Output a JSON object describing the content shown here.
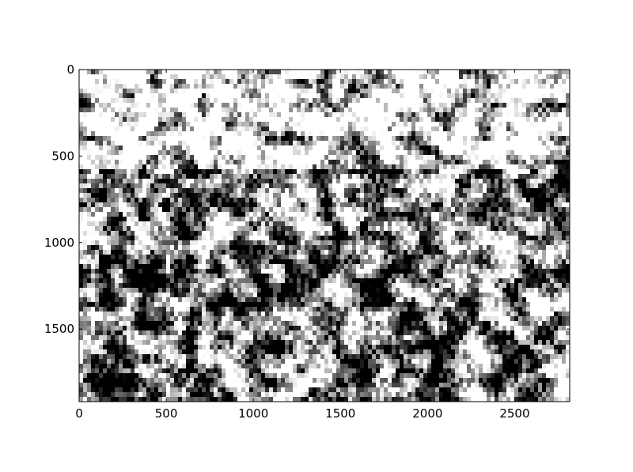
{
  "chart_data": {
    "type": "image",
    "colormap": "gray",
    "xlim": [
      0,
      2816
    ],
    "ylim": [
      1920,
      0
    ],
    "xticks": [
      0,
      500,
      1000,
      1500,
      2000,
      2500
    ],
    "yticks": [
      0,
      500,
      1000,
      1500
    ]
  }
}
